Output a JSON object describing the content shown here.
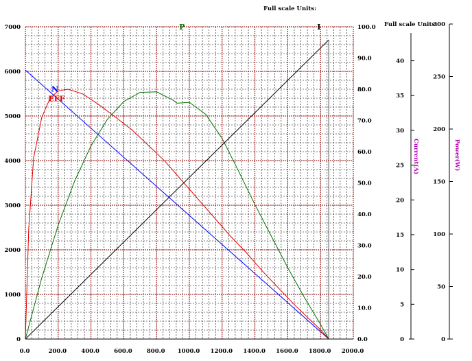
{
  "chart_data": {
    "type": "line",
    "header_top": "Full scale Units:",
    "header_right": "Full scale Units:",
    "x_axis": {
      "range": [
        0,
        2000
      ],
      "ticks": [
        "0.0",
        "200.0",
        "400.0",
        "600.0",
        "800.0",
        "1000.0",
        "1200.0",
        "1400.0",
        "1600.0",
        "1800.0",
        "2000.0"
      ]
    },
    "left_axis": {
      "range": [
        0,
        7000
      ],
      "ticks": [
        "0",
        "1000",
        "2000",
        "3000",
        "4000",
        "5000",
        "6000",
        "7000"
      ]
    },
    "eff_axis": {
      "range": [
        0,
        100
      ],
      "ticks": [
        "0.0",
        "10.0",
        "20.0",
        "30.0",
        "40.0",
        "50.0",
        "60.0",
        "70.0",
        "80.0",
        "90.0",
        "100.0"
      ]
    },
    "current_axis": {
      "label": "Current(A)",
      "range": [
        0,
        44
      ],
      "ticks": [
        "0",
        "5",
        "10",
        "15",
        "20",
        "25",
        "30",
        "35",
        "40"
      ]
    },
    "power_axis": {
      "label": "Power(W)",
      "range": [
        0,
        300
      ],
      "ticks": [
        "0",
        "50",
        "100",
        "150",
        "200",
        "250",
        "300"
      ]
    },
    "colors": {
      "N": "#0000ff",
      "EFF": "#e00000",
      "P": "#007000",
      "I": "#000000",
      "grid_major": "#8b0000",
      "grid_minor": "#000000",
      "axis_title": "#b000b0"
    },
    "series": [
      {
        "name": "N",
        "axis": "left",
        "x": [
          0,
          1850
        ],
        "y": [
          6030,
          0
        ]
      },
      {
        "name": "EFF",
        "axis": "eff",
        "x": [
          0,
          20,
          50,
          100,
          150,
          200,
          260,
          350,
          450,
          550,
          650,
          750,
          850,
          950,
          1050,
          1150,
          1250,
          1350,
          1450,
          1550,
          1650,
          1750,
          1800,
          1850
        ],
        "y": [
          0,
          35,
          58,
          71,
          77,
          79.5,
          80,
          78.5,
          75,
          71,
          67,
          62,
          57,
          51,
          45,
          39,
          33,
          27.5,
          21.5,
          16,
          10.5,
          5.5,
          3,
          0
        ]
      },
      {
        "name": "P",
        "axis": "power",
        "x": [
          0,
          100,
          200,
          300,
          400,
          500,
          600,
          700,
          800,
          900,
          925,
          1000,
          1100,
          1200,
          1300,
          1400,
          1500,
          1600,
          1700,
          1800,
          1850
        ],
        "y": [
          0,
          58.3,
          108.5,
          150.3,
          183.9,
          209.2,
          226.2,
          234.9,
          235.4,
          227.6,
          224.6,
          225.4,
          214,
          191,
          160,
          128,
          98,
          68,
          40,
          14,
          0
        ]
      },
      {
        "name": "I",
        "axis": "current",
        "x": [
          0,
          1850
        ],
        "y": [
          0,
          43
        ]
      }
    ],
    "labels": [
      {
        "text": "N",
        "color": "#0000ff",
        "x": 180,
        "y": 5550
      },
      {
        "text": "EFF",
        "color": "#e00000",
        "x": 190,
        "y": 5330
      },
      {
        "text": "P",
        "color": "#007000",
        "x": 955,
        "y": 6940
      },
      {
        "text": "I",
        "color": "#000000",
        "x": 1790,
        "y": 6940
      }
    ]
  }
}
